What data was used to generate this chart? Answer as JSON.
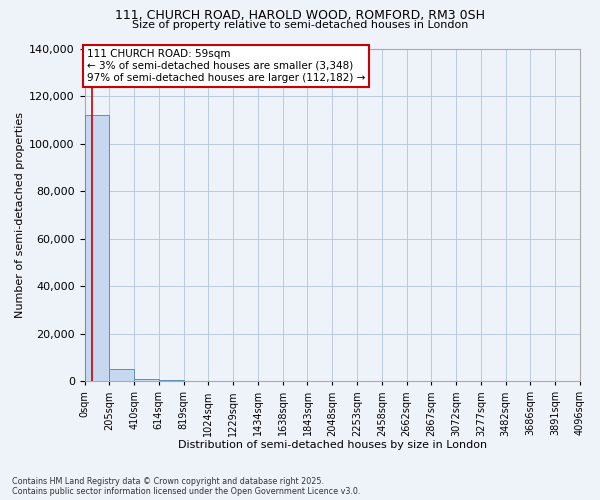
{
  "title": "111, CHURCH ROAD, HAROLD WOOD, ROMFORD, RM3 0SH",
  "subtitle": "Size of property relative to semi-detached houses in London",
  "xlabel": "Distribution of semi-detached houses by size in London",
  "ylabel": "Number of semi-detached properties",
  "property_size": 59,
  "annotation_text": "111 CHURCH ROAD: 59sqm\n← 3% of semi-detached houses are smaller (3,348)\n97% of semi-detached houses are larger (112,182) →",
  "bin_edges": [
    0,
    205,
    410,
    614,
    819,
    1024,
    1229,
    1434,
    1638,
    1843,
    2048,
    2253,
    2458,
    2662,
    2867,
    3072,
    3277,
    3482,
    3686,
    3891,
    4096
  ],
  "bar_heights": [
    112182,
    5000,
    800,
    300,
    120,
    80,
    60,
    45,
    35,
    28,
    22,
    18,
    15,
    12,
    10,
    8,
    7,
    6,
    5,
    4
  ],
  "bar_color": "#c6d8ef",
  "bar_edge_color": "#5a8fc0",
  "vline_color": "#cc0000",
  "vline_x": 59,
  "annotation_box_edge": "#cc0000",
  "ylim": [
    0,
    140000
  ],
  "yticks": [
    0,
    20000,
    40000,
    60000,
    80000,
    100000,
    120000,
    140000
  ],
  "footer": "Contains HM Land Registry data © Crown copyright and database right 2025.\nContains public sector information licensed under the Open Government Licence v3.0.",
  "bg_color": "#eef2f9"
}
